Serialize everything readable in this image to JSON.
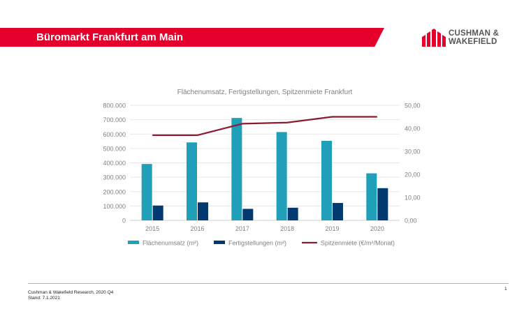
{
  "header": {
    "title": "Büromarkt Frankfurt am Main",
    "logo_line1": "CUSHMAN &",
    "logo_line2": "WAKEFIELD",
    "banner_color": "#e4002b"
  },
  "chart_data": {
    "type": "bar",
    "title": "Flächenumsatz, Fertigstellungen, Spitzenmiete Frankfurt",
    "categories": [
      "2015",
      "2016",
      "2017",
      "2018",
      "2019",
      "2020"
    ],
    "series": [
      {
        "name": "Flächenumsatz (m²)",
        "type": "bar",
        "axis": "left",
        "color": "#1fa0b8",
        "values": [
          392000,
          542000,
          712000,
          614000,
          553000,
          327000
        ]
      },
      {
        "name": "Fertigstellungen (m²)",
        "type": "bar",
        "axis": "left",
        "color": "#003a70",
        "values": [
          103000,
          125000,
          80000,
          88000,
          121000,
          224000
        ]
      },
      {
        "name": "Spitzenmiete (€/m²/Monat)",
        "type": "line",
        "axis": "right",
        "color": "#8b1a32",
        "values": [
          37.0,
          37.0,
          42.0,
          42.5,
          45.0,
          45.0
        ]
      }
    ],
    "ylim": [
      0,
      800000
    ],
    "y2lim": [
      0,
      50
    ],
    "yticks": [
      "0",
      "100.000",
      "200.000",
      "300.000",
      "400.000",
      "500.000",
      "600.000",
      "700.000",
      "800.000"
    ],
    "y2ticks": [
      "0,00",
      "10,00",
      "20,00",
      "30,00",
      "40,00",
      "50,00"
    ],
    "grid": true,
    "legend": "bottom"
  },
  "footer": {
    "source": "Cushman & Wakefield Research, 2020 Q4",
    "date": "Stand: 7.1.2021",
    "page_number": "1"
  }
}
